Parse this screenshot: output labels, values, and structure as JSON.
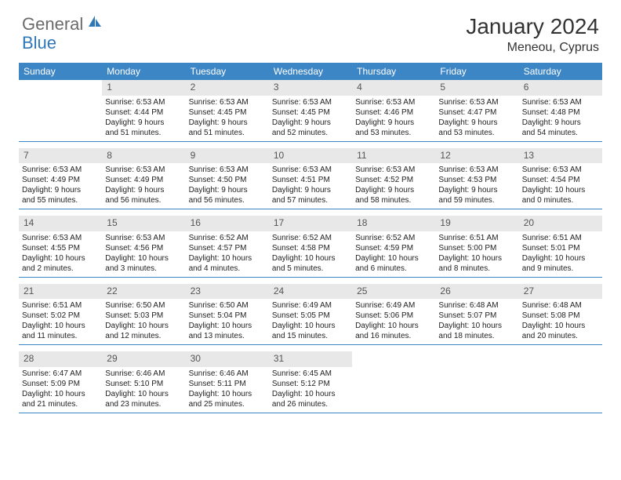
{
  "logo": {
    "general": "General",
    "blue": "Blue"
  },
  "title": "January 2024",
  "location": "Meneou, Cyprus",
  "header_bg": "#3d86c6",
  "daynum_bg": "#e8e8e8",
  "days": [
    "Sunday",
    "Monday",
    "Tuesday",
    "Wednesday",
    "Thursday",
    "Friday",
    "Saturday"
  ],
  "weeks": [
    [
      null,
      {
        "n": "1",
        "sr": "Sunrise: 6:53 AM",
        "ss": "Sunset: 4:44 PM",
        "d1": "Daylight: 9 hours",
        "d2": "and 51 minutes."
      },
      {
        "n": "2",
        "sr": "Sunrise: 6:53 AM",
        "ss": "Sunset: 4:45 PM",
        "d1": "Daylight: 9 hours",
        "d2": "and 51 minutes."
      },
      {
        "n": "3",
        "sr": "Sunrise: 6:53 AM",
        "ss": "Sunset: 4:45 PM",
        "d1": "Daylight: 9 hours",
        "d2": "and 52 minutes."
      },
      {
        "n": "4",
        "sr": "Sunrise: 6:53 AM",
        "ss": "Sunset: 4:46 PM",
        "d1": "Daylight: 9 hours",
        "d2": "and 53 minutes."
      },
      {
        "n": "5",
        "sr": "Sunrise: 6:53 AM",
        "ss": "Sunset: 4:47 PM",
        "d1": "Daylight: 9 hours",
        "d2": "and 53 minutes."
      },
      {
        "n": "6",
        "sr": "Sunrise: 6:53 AM",
        "ss": "Sunset: 4:48 PM",
        "d1": "Daylight: 9 hours",
        "d2": "and 54 minutes."
      }
    ],
    [
      {
        "n": "7",
        "sr": "Sunrise: 6:53 AM",
        "ss": "Sunset: 4:49 PM",
        "d1": "Daylight: 9 hours",
        "d2": "and 55 minutes."
      },
      {
        "n": "8",
        "sr": "Sunrise: 6:53 AM",
        "ss": "Sunset: 4:49 PM",
        "d1": "Daylight: 9 hours",
        "d2": "and 56 minutes."
      },
      {
        "n": "9",
        "sr": "Sunrise: 6:53 AM",
        "ss": "Sunset: 4:50 PM",
        "d1": "Daylight: 9 hours",
        "d2": "and 56 minutes."
      },
      {
        "n": "10",
        "sr": "Sunrise: 6:53 AM",
        "ss": "Sunset: 4:51 PM",
        "d1": "Daylight: 9 hours",
        "d2": "and 57 minutes."
      },
      {
        "n": "11",
        "sr": "Sunrise: 6:53 AM",
        "ss": "Sunset: 4:52 PM",
        "d1": "Daylight: 9 hours",
        "d2": "and 58 minutes."
      },
      {
        "n": "12",
        "sr": "Sunrise: 6:53 AM",
        "ss": "Sunset: 4:53 PM",
        "d1": "Daylight: 9 hours",
        "d2": "and 59 minutes."
      },
      {
        "n": "13",
        "sr": "Sunrise: 6:53 AM",
        "ss": "Sunset: 4:54 PM",
        "d1": "Daylight: 10 hours",
        "d2": "and 0 minutes."
      }
    ],
    [
      {
        "n": "14",
        "sr": "Sunrise: 6:53 AM",
        "ss": "Sunset: 4:55 PM",
        "d1": "Daylight: 10 hours",
        "d2": "and 2 minutes."
      },
      {
        "n": "15",
        "sr": "Sunrise: 6:53 AM",
        "ss": "Sunset: 4:56 PM",
        "d1": "Daylight: 10 hours",
        "d2": "and 3 minutes."
      },
      {
        "n": "16",
        "sr": "Sunrise: 6:52 AM",
        "ss": "Sunset: 4:57 PM",
        "d1": "Daylight: 10 hours",
        "d2": "and 4 minutes."
      },
      {
        "n": "17",
        "sr": "Sunrise: 6:52 AM",
        "ss": "Sunset: 4:58 PM",
        "d1": "Daylight: 10 hours",
        "d2": "and 5 minutes."
      },
      {
        "n": "18",
        "sr": "Sunrise: 6:52 AM",
        "ss": "Sunset: 4:59 PM",
        "d1": "Daylight: 10 hours",
        "d2": "and 6 minutes."
      },
      {
        "n": "19",
        "sr": "Sunrise: 6:51 AM",
        "ss": "Sunset: 5:00 PM",
        "d1": "Daylight: 10 hours",
        "d2": "and 8 minutes."
      },
      {
        "n": "20",
        "sr": "Sunrise: 6:51 AM",
        "ss": "Sunset: 5:01 PM",
        "d1": "Daylight: 10 hours",
        "d2": "and 9 minutes."
      }
    ],
    [
      {
        "n": "21",
        "sr": "Sunrise: 6:51 AM",
        "ss": "Sunset: 5:02 PM",
        "d1": "Daylight: 10 hours",
        "d2": "and 11 minutes."
      },
      {
        "n": "22",
        "sr": "Sunrise: 6:50 AM",
        "ss": "Sunset: 5:03 PM",
        "d1": "Daylight: 10 hours",
        "d2": "and 12 minutes."
      },
      {
        "n": "23",
        "sr": "Sunrise: 6:50 AM",
        "ss": "Sunset: 5:04 PM",
        "d1": "Daylight: 10 hours",
        "d2": "and 13 minutes."
      },
      {
        "n": "24",
        "sr": "Sunrise: 6:49 AM",
        "ss": "Sunset: 5:05 PM",
        "d1": "Daylight: 10 hours",
        "d2": "and 15 minutes."
      },
      {
        "n": "25",
        "sr": "Sunrise: 6:49 AM",
        "ss": "Sunset: 5:06 PM",
        "d1": "Daylight: 10 hours",
        "d2": "and 16 minutes."
      },
      {
        "n": "26",
        "sr": "Sunrise: 6:48 AM",
        "ss": "Sunset: 5:07 PM",
        "d1": "Daylight: 10 hours",
        "d2": "and 18 minutes."
      },
      {
        "n": "27",
        "sr": "Sunrise: 6:48 AM",
        "ss": "Sunset: 5:08 PM",
        "d1": "Daylight: 10 hours",
        "d2": "and 20 minutes."
      }
    ],
    [
      {
        "n": "28",
        "sr": "Sunrise: 6:47 AM",
        "ss": "Sunset: 5:09 PM",
        "d1": "Daylight: 10 hours",
        "d2": "and 21 minutes."
      },
      {
        "n": "29",
        "sr": "Sunrise: 6:46 AM",
        "ss": "Sunset: 5:10 PM",
        "d1": "Daylight: 10 hours",
        "d2": "and 23 minutes."
      },
      {
        "n": "30",
        "sr": "Sunrise: 6:46 AM",
        "ss": "Sunset: 5:11 PM",
        "d1": "Daylight: 10 hours",
        "d2": "and 25 minutes."
      },
      {
        "n": "31",
        "sr": "Sunrise: 6:45 AM",
        "ss": "Sunset: 5:12 PM",
        "d1": "Daylight: 10 hours",
        "d2": "and 26 minutes."
      },
      null,
      null,
      null
    ]
  ]
}
